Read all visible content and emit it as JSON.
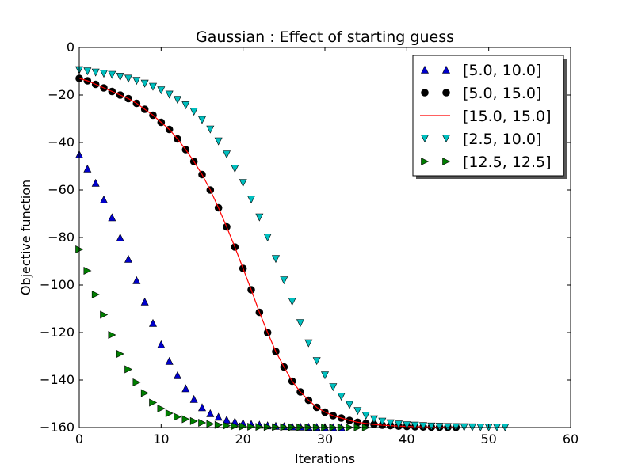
{
  "chart_data": {
    "type": "scatter",
    "title": "Gaussian : Effect of starting guess",
    "xlabel": "Iterations",
    "ylabel": "Objective function",
    "xlim": [
      0,
      60
    ],
    "ylim": [
      -160,
      0
    ],
    "xticks": [
      0,
      10,
      20,
      30,
      40,
      50,
      60
    ],
    "yticks": [
      0,
      -20,
      -40,
      -60,
      -80,
      -100,
      -120,
      -140,
      -160
    ],
    "grid": false,
    "legend_position": "top-right",
    "series": [
      {
        "name": "[5.0, 10.0]",
        "marker": "triangle-up",
        "color": "#0000cc",
        "x": [
          0,
          1,
          2,
          3,
          4,
          5,
          6,
          7,
          8,
          9,
          10,
          11,
          12,
          13,
          14,
          15,
          16,
          17,
          18,
          19,
          20,
          21,
          22,
          23,
          24,
          25,
          26,
          27,
          28,
          29,
          30,
          31,
          32
        ],
        "y": [
          -45,
          -51,
          -57,
          -64,
          -71.5,
          -80,
          -89,
          -98,
          -107,
          -116,
          -125,
          -132,
          -138,
          -143.5,
          -148,
          -151.5,
          -154,
          -155.5,
          -156.7,
          -157.5,
          -158.1,
          -158.5,
          -158.8,
          -159.1,
          -159.3,
          -159.45,
          -159.55,
          -159.65,
          -159.72,
          -159.78,
          -159.83,
          -159.87,
          -159.9
        ]
      },
      {
        "name": "[5.0, 15.0]",
        "marker": "circle",
        "color": "#000000",
        "x": [
          0,
          1,
          2,
          3,
          4,
          5,
          6,
          7,
          8,
          9,
          10,
          11,
          12,
          13,
          14,
          15,
          16,
          17,
          18,
          19,
          20,
          21,
          22,
          23,
          24,
          25,
          26,
          27,
          28,
          29,
          30,
          31,
          32,
          33,
          34,
          35,
          36,
          37,
          38,
          39,
          40,
          41,
          42,
          43,
          44,
          45,
          46
        ],
        "y": [
          -13,
          -14,
          -15.5,
          -17,
          -18.5,
          -20,
          -21.5,
          -23.5,
          -26,
          -28.5,
          -31.5,
          -34.5,
          -38.5,
          -43,
          -48,
          -53.5,
          -60,
          -67.5,
          -75.5,
          -84,
          -93,
          -102,
          -111.5,
          -120,
          -128,
          -134.5,
          -140.5,
          -145,
          -148.5,
          -151.5,
          -153.5,
          -155,
          -156,
          -157,
          -157.8,
          -158.3,
          -158.7,
          -159,
          -159.2,
          -159.4,
          -159.55,
          -159.65,
          -159.75,
          -159.82,
          -159.87,
          -159.9,
          -159.93
        ]
      },
      {
        "name": "[15.0, 15.0]",
        "marker": "line",
        "color": "#ff0000",
        "x": [
          0,
          1,
          2,
          3,
          4,
          5,
          6,
          7,
          8,
          9,
          10,
          11,
          12,
          13,
          14,
          15,
          16,
          17,
          18,
          19,
          20,
          21,
          22,
          23,
          24,
          25,
          26,
          27,
          28,
          29,
          30,
          31,
          32,
          33,
          34,
          35,
          36,
          37,
          38,
          39,
          40,
          41,
          42,
          43,
          44,
          45,
          46
        ],
        "y": [
          -13,
          -14,
          -15.5,
          -17,
          -18.5,
          -20,
          -21.5,
          -23.5,
          -26,
          -28.5,
          -31.5,
          -34.5,
          -38.5,
          -43,
          -48,
          -53.5,
          -60,
          -67.5,
          -75.5,
          -84,
          -93,
          -102,
          -111.5,
          -120,
          -128,
          -134.5,
          -140.5,
          -145,
          -148.5,
          -151.5,
          -153.5,
          -155,
          -156,
          -157,
          -157.8,
          -158.3,
          -158.7,
          -159,
          -159.2,
          -159.4,
          -159.55,
          -159.65,
          -159.75,
          -159.82,
          -159.87,
          -159.9,
          -159.93
        ]
      },
      {
        "name": "[2.5, 10.0]",
        "marker": "triangle-down",
        "color": "#00bfbf",
        "x": [
          0,
          1,
          2,
          3,
          4,
          5,
          6,
          7,
          8,
          9,
          10,
          11,
          12,
          13,
          14,
          15,
          16,
          17,
          18,
          19,
          20,
          21,
          22,
          23,
          24,
          25,
          26,
          27,
          28,
          29,
          30,
          31,
          32,
          33,
          34,
          35,
          36,
          37,
          38,
          39,
          40,
          41,
          42,
          43,
          44,
          45,
          46,
          47,
          48,
          49,
          50,
          51,
          52
        ],
        "y": [
          -9.5,
          -10,
          -10.5,
          -11,
          -11.5,
          -12.3,
          -13.1,
          -14,
          -15.2,
          -16.5,
          -18,
          -19.8,
          -22,
          -24.3,
          -27,
          -30.5,
          -34.5,
          -39.5,
          -45,
          -51,
          -57,
          -64,
          -71.5,
          -80,
          -89,
          -98,
          -107,
          -116,
          -124.5,
          -132,
          -138,
          -143,
          -147,
          -150.5,
          -153,
          -155,
          -156.5,
          -157.5,
          -158.2,
          -158.7,
          -159,
          -159.2,
          -159.4,
          -159.55,
          -159.65,
          -159.75,
          -159.82,
          -159.87,
          -159.9,
          -159.92,
          -159.94,
          -159.96,
          -159.97
        ]
      },
      {
        "name": "[12.5, 12.5]",
        "marker": "triangle-right",
        "color": "#007f00",
        "x": [
          0,
          1,
          2,
          3,
          4,
          5,
          6,
          7,
          8,
          9,
          10,
          11,
          12,
          13,
          14,
          15,
          16,
          17,
          18,
          19,
          20,
          21,
          22,
          23,
          24,
          25,
          26,
          27,
          28,
          29,
          30,
          31,
          32,
          33,
          34,
          35
        ],
        "y": [
          -85,
          -94,
          -104,
          -112.5,
          -121,
          -129,
          -135.5,
          -141,
          -145.5,
          -149.5,
          -152,
          -154,
          -155.5,
          -156.5,
          -157.3,
          -158,
          -158.5,
          -158.9,
          -159.2,
          -159.4,
          -159.55,
          -159.65,
          -159.73,
          -159.8,
          -159.85,
          -159.88,
          -159.9,
          -159.92,
          -159.94,
          -159.95,
          -159.96,
          -159.97,
          -159.97,
          -159.98,
          -159.98,
          -159.99
        ]
      }
    ]
  }
}
